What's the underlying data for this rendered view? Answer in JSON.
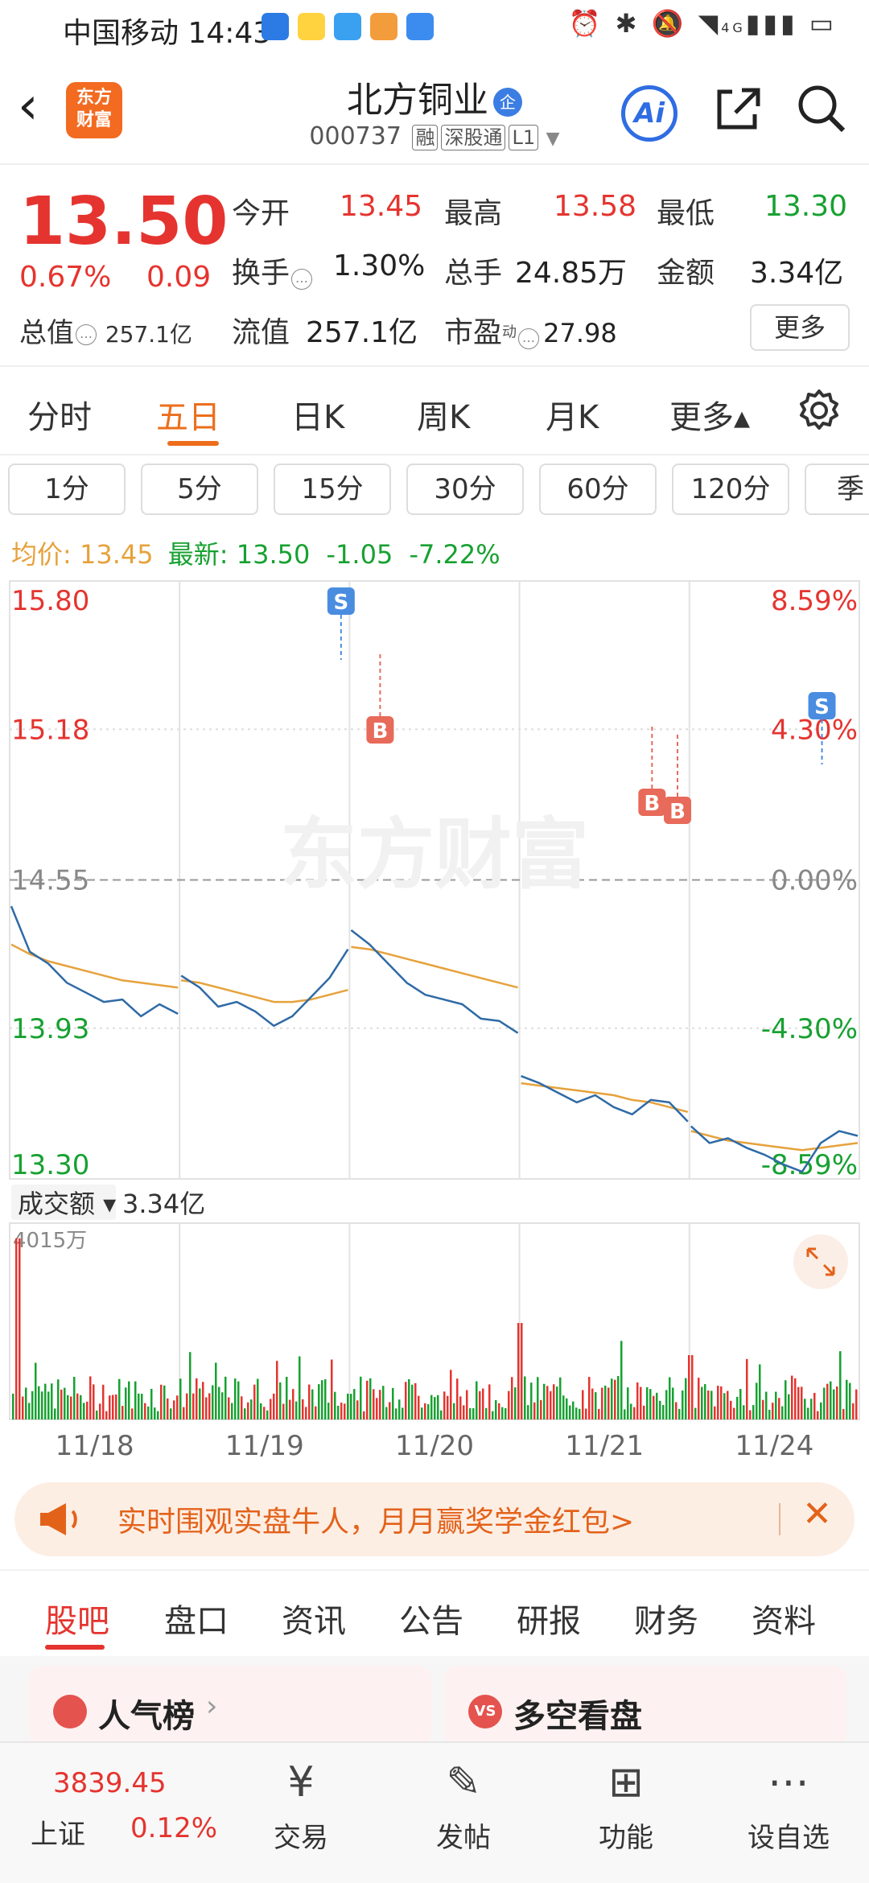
{
  "status_bar": {
    "carrier": "中国移动",
    "time": "14:43",
    "network": "4G"
  },
  "header": {
    "back_icon": "chevron-left-icon",
    "logo_line1": "东方",
    "logo_line2": "财富",
    "stock_name": "北方铜业",
    "qi_badge": "企",
    "code": "000737",
    "tags": [
      "融",
      "深股通",
      "L1"
    ],
    "ai_label": "Ai"
  },
  "quote": {
    "price": "13.50",
    "change_pct": "0.67%",
    "change": "0.09",
    "open_label": "今开",
    "open": "13.45",
    "high_label": "最高",
    "high": "13.58",
    "low_label": "最低",
    "low": "13.30",
    "turnover_label": "换手",
    "turnover": "1.30%",
    "vol_label": "总手",
    "vol": "24.85万",
    "amount_label": "金额",
    "amount": "3.34亿",
    "mcap_label": "总值",
    "mcap": "257.1亿",
    "float_label": "流值",
    "float": "257.1亿",
    "pe_label": "市盈",
    "pe_sup": "动",
    "pe": "27.98",
    "more": "更多"
  },
  "tabs": [
    {
      "label": "分时"
    },
    {
      "label": "五日"
    },
    {
      "label": "日K"
    },
    {
      "label": "周K"
    },
    {
      "label": "月K"
    },
    {
      "label": "更多▴"
    }
  ],
  "periods": [
    "1分",
    "5分",
    "15分",
    "30分",
    "60分",
    "120分",
    "季"
  ],
  "info": {
    "avg_label": "均价:",
    "avg": "13.45",
    "latest_label": "最新:",
    "latest": "13.50",
    "chg": "-1.05",
    "chg_pct": "-7.22%"
  },
  "chart_data": {
    "type": "line",
    "y_ticks_left": [
      "15.80",
      "15.18",
      "14.55",
      "13.93",
      "13.30"
    ],
    "y_ticks_right": [
      "8.59%",
      "4.30%",
      "0.00%",
      "-4.30%",
      "-8.59%"
    ],
    "x_labels": [
      "11/18",
      "11/19",
      "11/20",
      "11/21",
      "11/24"
    ],
    "ylim": [
      13.3,
      15.8
    ],
    "watermark": "东方财富",
    "volume_label": "成交额",
    "volume_value": "3.34亿",
    "volume_max": "4015万",
    "price_series": {
      "name": "最新",
      "values": [
        14.44,
        14.25,
        14.2,
        14.12,
        14.08,
        14.04,
        14.05,
        13.98,
        14.03,
        13.99,
        14.15,
        14.1,
        14.02,
        14.04,
        14.0,
        13.94,
        13.98,
        14.06,
        14.14,
        14.26,
        14.34,
        14.28,
        14.2,
        14.12,
        14.07,
        14.05,
        14.03,
        13.97,
        13.96,
        13.91,
        13.73,
        13.7,
        13.66,
        13.62,
        13.65,
        13.6,
        13.57,
        13.63,
        13.62,
        13.54,
        13.52,
        13.45,
        13.47,
        13.43,
        13.4,
        13.36,
        13.33,
        13.45,
        13.5,
        13.48
      ]
    },
    "avg_series": {
      "name": "均价",
      "values": [
        14.28,
        14.24,
        14.21,
        14.19,
        14.17,
        14.15,
        14.13,
        14.12,
        14.11,
        14.1,
        14.13,
        14.12,
        14.1,
        14.08,
        14.06,
        14.04,
        14.04,
        14.05,
        14.07,
        14.09,
        14.27,
        14.26,
        14.24,
        14.22,
        14.2,
        14.18,
        14.16,
        14.14,
        14.12,
        14.1,
        13.7,
        13.69,
        13.68,
        13.67,
        13.66,
        13.65,
        13.63,
        13.62,
        13.6,
        13.58,
        13.5,
        13.48,
        13.46,
        13.45,
        13.44,
        13.43,
        13.42,
        13.43,
        13.44,
        13.45
      ]
    },
    "markers": [
      {
        "type": "S",
        "day": 1
      },
      {
        "type": "B",
        "day": 2
      },
      {
        "type": "B",
        "day": 3
      },
      {
        "type": "B",
        "day": 3
      },
      {
        "type": "S",
        "day": 4
      }
    ]
  },
  "promo": {
    "text": "实时围观实盘牛人，月月赢奖学金红包>"
  },
  "subtabs": [
    "股吧",
    "盘口",
    "资讯",
    "公告",
    "研报",
    "财务",
    "资料"
  ],
  "cards": [
    {
      "title": "人气榜"
    },
    {
      "title": "多空看盘"
    }
  ],
  "bottom_nav": {
    "index_value": "3839.45",
    "index_name": "上证",
    "index_pct": "0.12%",
    "items": [
      "交易",
      "发帖",
      "功能",
      "设自选"
    ]
  }
}
